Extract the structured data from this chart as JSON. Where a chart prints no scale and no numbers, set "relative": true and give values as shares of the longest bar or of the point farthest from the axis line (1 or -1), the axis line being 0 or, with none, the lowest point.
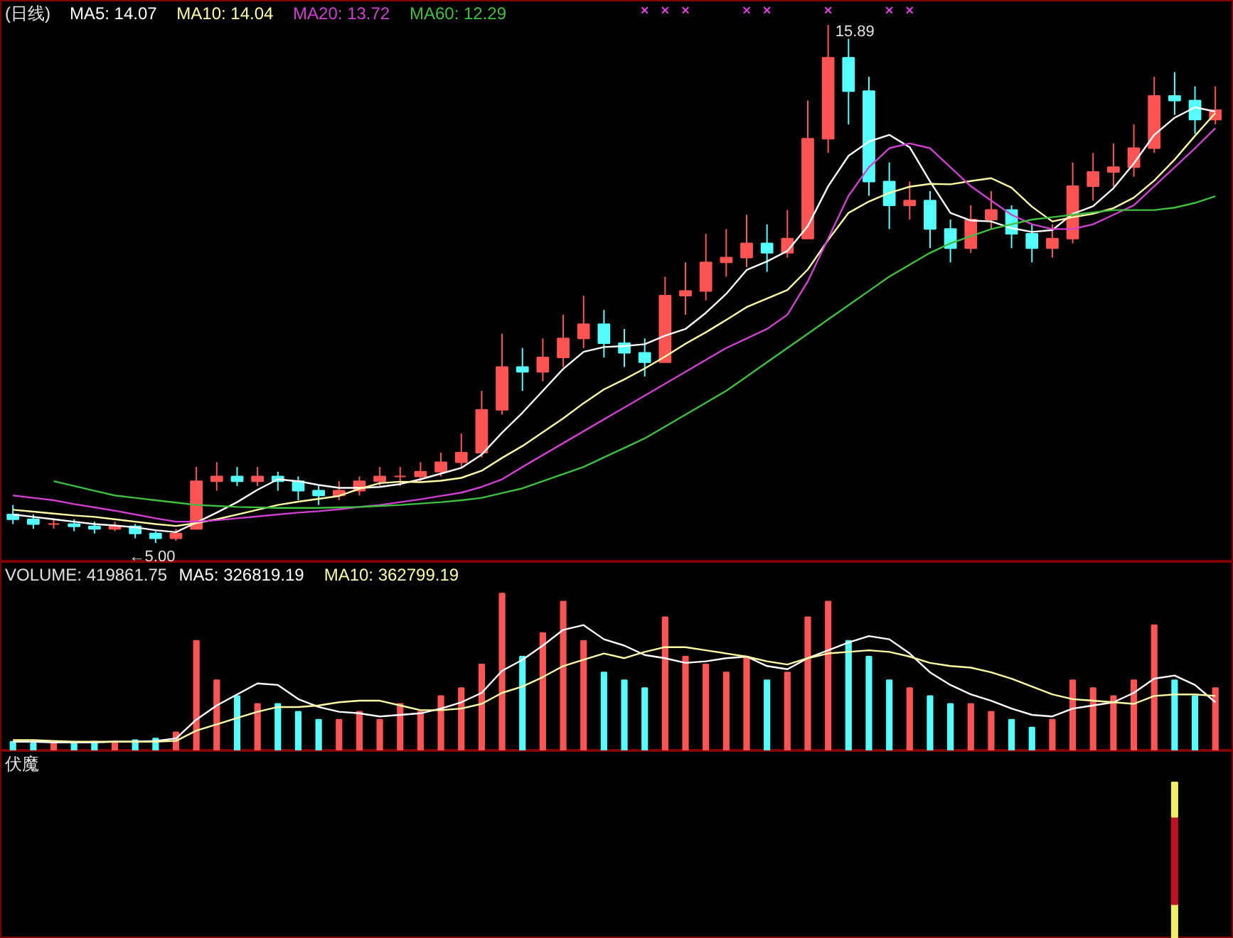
{
  "chart_data": [
    {
      "type": "candlestick",
      "title": "(日线)",
      "tick_labels": false,
      "ylim": [
        4.6,
        16.4
      ],
      "categories": [
        null,
        null,
        null,
        null,
        null,
        null,
        null,
        null,
        null,
        null,
        null,
        null,
        null,
        null,
        null,
        null,
        null,
        null,
        null,
        null,
        null,
        null,
        null,
        null,
        null,
        null,
        null,
        null,
        null,
        null,
        null,
        null,
        null,
        null,
        null,
        null,
        null,
        null,
        null,
        null,
        null,
        null,
        null,
        null,
        null,
        null,
        null,
        null,
        null,
        null,
        null,
        null,
        null,
        null,
        null,
        null,
        null,
        null,
        null,
        null
      ],
      "ohlc": [
        [
          5.6,
          5.8,
          5.4,
          5.5
        ],
        [
          5.5,
          5.6,
          5.3,
          5.4
        ],
        [
          5.4,
          5.5,
          5.3,
          5.4
        ],
        [
          5.4,
          5.5,
          5.25,
          5.35
        ],
        [
          5.35,
          5.45,
          5.2,
          5.3
        ],
        [
          5.3,
          5.45,
          5.25,
          5.35
        ],
        [
          5.35,
          5.4,
          5.1,
          5.2
        ],
        [
          5.2,
          5.25,
          5.0,
          5.1
        ],
        [
          5.1,
          5.3,
          5.05,
          5.2
        ],
        [
          5.3,
          6.6,
          5.3,
          6.3
        ],
        [
          6.3,
          6.7,
          6.1,
          6.4
        ],
        [
          6.4,
          6.6,
          6.2,
          6.3
        ],
        [
          6.3,
          6.6,
          6.2,
          6.4
        ],
        [
          6.4,
          6.5,
          6.1,
          6.3
        ],
        [
          6.3,
          6.4,
          5.9,
          6.1
        ],
        [
          6.1,
          6.2,
          5.8,
          6.0
        ],
        [
          6.0,
          6.3,
          5.9,
          6.1
        ],
        [
          6.1,
          6.4,
          6.0,
          6.3
        ],
        [
          6.3,
          6.6,
          6.2,
          6.4
        ],
        [
          6.4,
          6.6,
          6.2,
          6.4
        ],
        [
          6.4,
          6.7,
          6.3,
          6.5
        ],
        [
          6.5,
          6.9,
          6.4,
          6.7
        ],
        [
          6.7,
          7.3,
          6.6,
          6.9
        ],
        [
          6.9,
          8.2,
          6.8,
          7.8
        ],
        [
          7.8,
          9.4,
          7.7,
          8.7
        ],
        [
          8.7,
          9.1,
          8.2,
          8.6
        ],
        [
          8.6,
          9.3,
          8.4,
          8.9
        ],
        [
          8.9,
          9.8,
          8.7,
          9.3
        ],
        [
          9.3,
          10.2,
          9.1,
          9.6
        ],
        [
          9.6,
          9.9,
          8.9,
          9.2
        ],
        [
          9.2,
          9.5,
          8.7,
          9.0
        ],
        [
          9.0,
          9.3,
          8.5,
          8.8
        ],
        [
          8.8,
          10.6,
          8.8,
          10.2
        ],
        [
          10.2,
          10.9,
          9.8,
          10.3
        ],
        [
          10.3,
          11.5,
          10.1,
          10.9
        ],
        [
          10.9,
          11.6,
          10.6,
          11.0
        ],
        [
          11.0,
          11.9,
          10.8,
          11.3
        ],
        [
          11.3,
          11.7,
          10.7,
          11.1
        ],
        [
          11.1,
          12.0,
          11.0,
          11.4
        ],
        [
          11.4,
          14.3,
          11.4,
          13.5
        ],
        [
          13.5,
          15.89,
          13.2,
          15.2
        ],
        [
          15.2,
          15.6,
          13.8,
          14.5
        ],
        [
          14.5,
          14.8,
          12.3,
          12.6
        ],
        [
          12.6,
          13.0,
          11.6,
          12.1
        ],
        [
          12.1,
          12.6,
          11.8,
          12.2
        ],
        [
          12.2,
          12.4,
          11.2,
          11.6
        ],
        [
          11.6,
          11.8,
          10.9,
          11.2
        ],
        [
          11.2,
          12.1,
          11.1,
          11.8
        ],
        [
          11.8,
          12.4,
          11.6,
          12.0
        ],
        [
          12.0,
          12.1,
          11.2,
          11.5
        ],
        [
          11.5,
          11.7,
          10.9,
          11.2
        ],
        [
          11.2,
          11.7,
          11.0,
          11.4
        ],
        [
          11.4,
          13.0,
          11.3,
          12.5
        ],
        [
          12.5,
          13.2,
          12.2,
          12.8
        ],
        [
          12.8,
          13.4,
          12.5,
          12.9
        ],
        [
          12.9,
          13.8,
          12.7,
          13.3
        ],
        [
          13.3,
          14.8,
          13.2,
          14.4
        ],
        [
          14.4,
          14.9,
          14.0,
          14.3
        ],
        [
          14.3,
          14.6,
          13.6,
          13.9
        ],
        [
          13.9,
          14.6,
          13.8,
          14.1
        ]
      ],
      "colors": [
        "#54ffff",
        "#54ffff",
        "#ff5454",
        "#54ffff",
        "#54ffff",
        "#ff5454",
        "#54ffff",
        "#54ffff",
        "#ff5454",
        "#ff5454",
        "#ff5454",
        "#54ffff",
        "#ff5454",
        "#54ffff",
        "#54ffff",
        "#54ffff",
        "#ff5454",
        "#ff5454",
        "#ff5454",
        "#ff5454",
        "#ff5454",
        "#ff5454",
        "#ff5454",
        "#ff5454",
        "#ff5454",
        "#54ffff",
        "#ff5454",
        "#ff5454",
        "#ff5454",
        "#54ffff",
        "#54ffff",
        "#54ffff",
        "#ff5454",
        "#ff5454",
        "#ff5454",
        "#ff5454",
        "#ff5454",
        "#54ffff",
        "#ff5454",
        "#ff5454",
        "#ff5454",
        "#54ffff",
        "#54ffff",
        "#54ffff",
        "#ff5454",
        "#54ffff",
        "#54ffff",
        "#ff5454",
        "#ff5454",
        "#54ffff",
        "#54ffff",
        "#ff5454",
        "#ff5454",
        "#ff5454",
        "#ff5454",
        "#ff5454",
        "#ff5454",
        "#54ffff",
        "#54ffff",
        "#ff5454"
      ],
      "series": [
        {
          "type": "line",
          "name": "MA5: 14.07",
          "color": "#ffffff",
          "values": [
            5.6,
            5.55,
            5.5,
            5.45,
            5.4,
            5.37,
            5.33,
            5.27,
            5.23,
            5.43,
            5.64,
            5.86,
            6.12,
            6.34,
            6.3,
            6.22,
            6.16,
            6.16,
            6.18,
            6.24,
            6.34,
            6.46,
            6.58,
            6.86,
            7.32,
            7.74,
            8.2,
            8.66,
            9.02,
            9.12,
            9.14,
            9.18,
            9.36,
            9.5,
            9.84,
            10.24,
            10.74,
            10.92,
            11.14,
            11.66,
            12.5,
            13.14,
            13.44,
            13.58,
            13.32,
            12.6,
            11.94,
            11.78,
            11.76,
            11.62,
            11.54,
            11.58,
            11.92,
            12.08,
            12.46,
            12.98,
            13.58,
            13.94,
            14.16,
            14.07
          ]
        },
        {
          "type": "line",
          "name": "MA10: 14.04",
          "color": "#ffffa8",
          "values": [
            5.7,
            5.66,
            5.62,
            5.58,
            5.55,
            5.5,
            5.45,
            5.4,
            5.36,
            5.42,
            5.5,
            5.6,
            5.7,
            5.8,
            5.87,
            5.93,
            5.99,
            6.14,
            6.26,
            6.29,
            6.28,
            6.31,
            6.37,
            6.52,
            6.79,
            7.04,
            7.33,
            7.62,
            7.94,
            8.23,
            8.44,
            8.67,
            8.92,
            9.19,
            9.43,
            9.69,
            9.96,
            10.14,
            10.32,
            10.75,
            11.37,
            11.94,
            12.18,
            12.36,
            12.49,
            12.55,
            12.54,
            12.61,
            12.67,
            12.47,
            12.07,
            11.76,
            11.85,
            11.92,
            12.04,
            12.26,
            12.62,
            13.06,
            13.56,
            14.04
          ]
        },
        {
          "type": "line",
          "name": "MA20: 13.72",
          "color": "#d040d0",
          "values": [
            6.0,
            5.95,
            5.9,
            5.82,
            5.75,
            5.68,
            5.6,
            5.52,
            5.45,
            5.45,
            5.48,
            5.52,
            5.56,
            5.6,
            5.64,
            5.67,
            5.71,
            5.76,
            5.8,
            5.86,
            5.92,
            5.99,
            6.06,
            6.18,
            6.34,
            6.6,
            6.85,
            7.1,
            7.35,
            7.6,
            7.85,
            8.1,
            8.35,
            8.6,
            8.85,
            9.1,
            9.3,
            9.5,
            9.8,
            10.5,
            11.4,
            12.3,
            12.9,
            13.3,
            13.4,
            13.3,
            12.9,
            12.5,
            12.2,
            11.9,
            11.7,
            11.6,
            11.6,
            11.7,
            11.9,
            12.1,
            12.5,
            12.9,
            13.3,
            13.72
          ]
        },
        {
          "type": "line",
          "name": "MA60: 12.29",
          "color": "#40c040",
          "values": [
            null,
            null,
            6.3,
            6.2,
            6.1,
            6.0,
            5.95,
            5.9,
            5.85,
            5.8,
            5.78,
            5.76,
            5.75,
            5.74,
            5.74,
            5.74,
            5.75,
            5.76,
            5.78,
            5.8,
            5.83,
            5.86,
            5.9,
            5.95,
            6.05,
            6.15,
            6.3,
            6.45,
            6.6,
            6.8,
            7.0,
            7.2,
            7.45,
            7.7,
            7.95,
            8.2,
            8.5,
            8.8,
            9.1,
            9.4,
            9.7,
            10.0,
            10.3,
            10.6,
            10.85,
            11.1,
            11.3,
            11.45,
            11.6,
            11.7,
            11.8,
            11.85,
            11.9,
            11.95,
            12.0,
            12.0,
            12.0,
            12.05,
            12.15,
            12.29
          ]
        },
        {
          "type": "scatter",
          "marker": "cross",
          "color": "#ff40ff",
          "values": [
            null,
            null,
            null,
            null,
            null,
            null,
            null,
            null,
            null,
            null,
            null,
            null,
            null,
            null,
            null,
            null,
            null,
            null,
            null,
            null,
            null,
            null,
            null,
            null,
            null,
            null,
            null,
            null,
            null,
            null,
            null,
            16.2,
            16.2,
            16.2,
            null,
            null,
            16.2,
            16.2,
            null,
            null,
            16.2,
            null,
            null,
            16.2,
            16.2,
            null,
            null,
            null,
            null,
            null,
            null,
            null,
            null,
            null,
            null,
            null,
            null,
            null,
            null,
            null
          ]
        }
      ],
      "annotations": [
        "15.89",
        "←5.00"
      ]
    },
    {
      "type": "bar",
      "title": "VOLUME: 419861.75",
      "relative": true,
      "tick_labels": false,
      "categories": [
        null,
        null,
        null,
        null,
        null,
        null,
        null,
        null,
        null,
        null,
        null,
        null,
        null,
        null,
        null,
        null,
        null,
        null,
        null,
        null,
        null,
        null,
        null,
        null,
        null,
        null,
        null,
        null,
        null,
        null,
        null,
        null,
        null,
        null,
        null,
        null,
        null,
        null,
        null,
        null,
        null,
        null,
        null,
        null,
        null,
        null,
        null,
        null,
        null,
        null,
        null,
        null,
        null,
        null,
        null,
        null,
        null,
        null,
        null,
        null
      ],
      "values": [
        0.06,
        0.05,
        0.05,
        0.05,
        0.06,
        0.06,
        0.07,
        0.08,
        0.12,
        0.7,
        0.45,
        0.35,
        0.3,
        0.3,
        0.25,
        0.2,
        0.2,
        0.25,
        0.2,
        0.3,
        0.25,
        0.35,
        0.4,
        0.55,
        1.0,
        0.6,
        0.75,
        0.95,
        0.7,
        0.5,
        0.45,
        0.4,
        0.85,
        0.6,
        0.55,
        0.5,
        0.6,
        0.45,
        0.5,
        0.85,
        0.95,
        0.7,
        0.6,
        0.45,
        0.4,
        0.35,
        0.3,
        0.3,
        0.25,
        0.2,
        0.15,
        0.2,
        0.45,
        0.4,
        0.35,
        0.45,
        0.8,
        0.45,
        0.35,
        0.4
      ],
      "colors": [
        "#54ffff",
        "#54ffff",
        "#ff5454",
        "#54ffff",
        "#54ffff",
        "#ff5454",
        "#54ffff",
        "#54ffff",
        "#ff5454",
        "#ff5454",
        "#ff5454",
        "#54ffff",
        "#ff5454",
        "#54ffff",
        "#54ffff",
        "#54ffff",
        "#ff5454",
        "#ff5454",
        "#ff5454",
        "#ff5454",
        "#ff5454",
        "#ff5454",
        "#ff5454",
        "#ff5454",
        "#ff5454",
        "#54ffff",
        "#ff5454",
        "#ff5454",
        "#ff5454",
        "#54ffff",
        "#54ffff",
        "#54ffff",
        "#ff5454",
        "#ff5454",
        "#ff5454",
        "#ff5454",
        "#ff5454",
        "#54ffff",
        "#ff5454",
        "#ff5454",
        "#ff5454",
        "#54ffff",
        "#54ffff",
        "#54ffff",
        "#ff5454",
        "#54ffff",
        "#54ffff",
        "#ff5454",
        "#ff5454",
        "#54ffff",
        "#54ffff",
        "#ff5454",
        "#ff5454",
        "#ff5454",
        "#ff5454",
        "#ff5454",
        "#ff5454",
        "#54ffff",
        "#54ffff",
        "#ff5454"
      ],
      "series": [
        {
          "type": "line",
          "name": "MA5: 326819.19",
          "color": "#ffffff",
          "values": [
            0.06,
            0.06,
            0.055,
            0.055,
            0.055,
            0.06,
            0.06,
            0.065,
            0.08,
            0.2,
            0.29,
            0.36,
            0.43,
            0.42,
            0.33,
            0.28,
            0.25,
            0.24,
            0.22,
            0.23,
            0.24,
            0.27,
            0.31,
            0.37,
            0.51,
            0.58,
            0.67,
            0.77,
            0.8,
            0.71,
            0.67,
            0.61,
            0.59,
            0.56,
            0.57,
            0.59,
            0.6,
            0.54,
            0.52,
            0.59,
            0.64,
            0.69,
            0.73,
            0.71,
            0.62,
            0.5,
            0.42,
            0.36,
            0.32,
            0.27,
            0.23,
            0.22,
            0.27,
            0.29,
            0.31,
            0.37,
            0.46,
            0.48,
            0.42,
            0.31
          ]
        },
        {
          "type": "line",
          "name": "MA10: 362799.19",
          "color": "#ffffa8",
          "values": [
            0.07,
            0.07,
            0.065,
            0.06,
            0.06,
            0.06,
            0.06,
            0.06,
            0.065,
            0.13,
            0.17,
            0.21,
            0.25,
            0.28,
            0.28,
            0.29,
            0.31,
            0.32,
            0.32,
            0.29,
            0.26,
            0.26,
            0.27,
            0.3,
            0.37,
            0.41,
            0.47,
            0.54,
            0.58,
            0.62,
            0.59,
            0.63,
            0.66,
            0.66,
            0.64,
            0.62,
            0.6,
            0.57,
            0.55,
            0.59,
            0.62,
            0.63,
            0.64,
            0.63,
            0.6,
            0.56,
            0.54,
            0.53,
            0.5,
            0.46,
            0.41,
            0.36,
            0.33,
            0.32,
            0.31,
            0.3,
            0.35,
            0.36,
            0.36,
            0.35
          ]
        }
      ]
    },
    {
      "type": "bar",
      "title": "伏魔",
      "relative": true,
      "stacked": true,
      "tick_labels": false,
      "categories": [
        null,
        null,
        null,
        null,
        null,
        null,
        null,
        null,
        null,
        null,
        null,
        null,
        null,
        null,
        null,
        null,
        null,
        null,
        null,
        null,
        null,
        null,
        null,
        null,
        null,
        null,
        null,
        null,
        null,
        null,
        null,
        null,
        null,
        null,
        null,
        null,
        null,
        null,
        null,
        null,
        null,
        null,
        null,
        null,
        null,
        null,
        null,
        null,
        null,
        null,
        null,
        null,
        null,
        null,
        null,
        null,
        null,
        null,
        null,
        null
      ],
      "series": [
        {
          "color": "#f0f060",
          "values": [
            null,
            null,
            null,
            null,
            null,
            null,
            null,
            null,
            null,
            null,
            null,
            null,
            null,
            null,
            null,
            null,
            null,
            null,
            null,
            null,
            null,
            null,
            null,
            null,
            null,
            null,
            null,
            null,
            null,
            null,
            null,
            null,
            null,
            null,
            null,
            null,
            null,
            null,
            null,
            null,
            null,
            null,
            null,
            null,
            null,
            null,
            null,
            null,
            null,
            null,
            null,
            null,
            null,
            null,
            null,
            null,
            null,
            0.22,
            null,
            null
          ]
        },
        {
          "color": "#c01020",
          "values": [
            null,
            null,
            null,
            null,
            null,
            null,
            null,
            null,
            null,
            null,
            null,
            null,
            null,
            null,
            null,
            null,
            null,
            null,
            null,
            null,
            null,
            null,
            null,
            null,
            null,
            null,
            null,
            null,
            null,
            null,
            null,
            null,
            null,
            null,
            null,
            null,
            null,
            null,
            null,
            null,
            null,
            null,
            null,
            null,
            null,
            null,
            null,
            null,
            null,
            null,
            null,
            null,
            null,
            null,
            null,
            null,
            null,
            0.56,
            null,
            null
          ]
        },
        {
          "color": "#f0f060",
          "values": [
            null,
            null,
            null,
            null,
            null,
            null,
            null,
            null,
            null,
            null,
            null,
            null,
            null,
            null,
            null,
            null,
            null,
            null,
            null,
            null,
            null,
            null,
            null,
            null,
            null,
            null,
            null,
            null,
            null,
            null,
            null,
            null,
            null,
            null,
            null,
            null,
            null,
            null,
            null,
            null,
            null,
            null,
            null,
            null,
            null,
            null,
            null,
            null,
            null,
            null,
            null,
            null,
            null,
            null,
            null,
            null,
            null,
            0.22,
            null,
            null
          ]
        }
      ]
    }
  ]
}
